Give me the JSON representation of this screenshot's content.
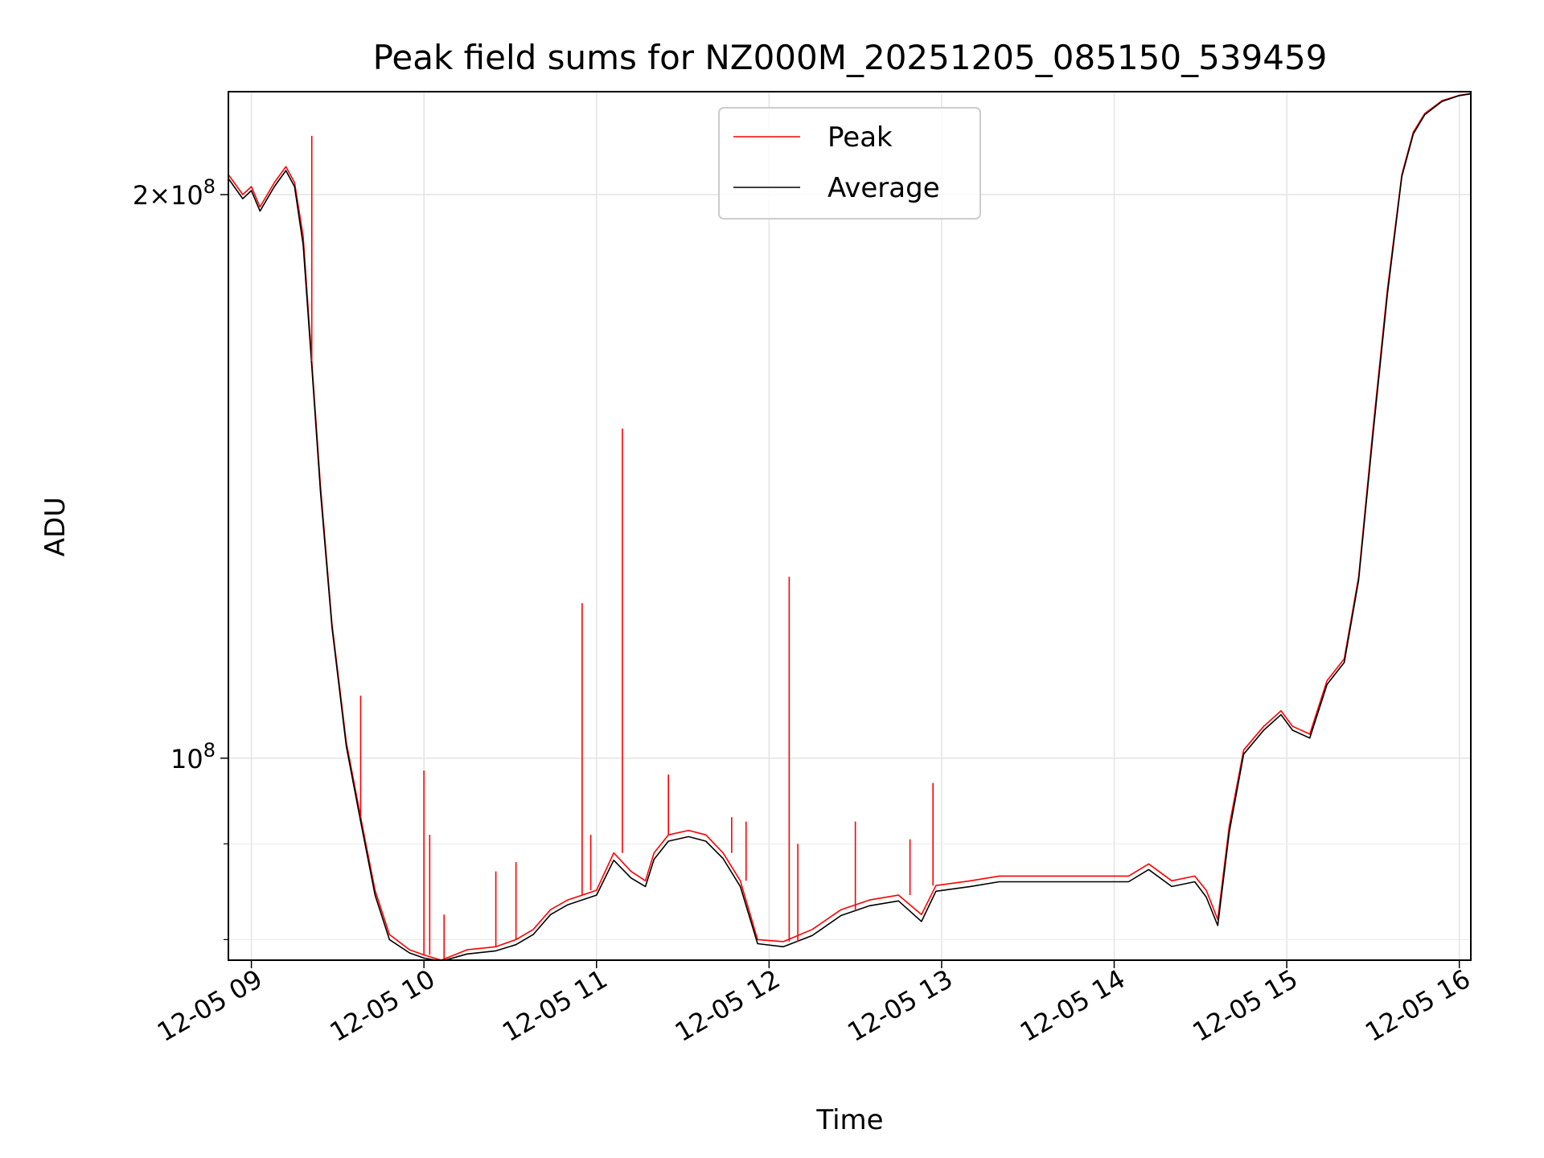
{
  "chart_data": {
    "type": "line",
    "title": "Peak field sums for NZ000M_20251205_085150_539459",
    "xlabel": "Time",
    "ylabel": "ADU",
    "yscale": "log",
    "grid": true,
    "legend_position": "upper center",
    "xlim": [
      "2025-12-05 08:52",
      "2025-12-05 16:04"
    ],
    "ylim": [
      78000000.0,
      227000000.0
    ],
    "x_ticks": [
      "12-05 09",
      "12-05 10",
      "12-05 11",
      "12-05 12",
      "12-05 13",
      "12-05 14",
      "12-05 15",
      "12-05 16"
    ],
    "x_tick_times": [
      "2025-12-05 09:00",
      "2025-12-05 10:00",
      "2025-12-05 11:00",
      "2025-12-05 12:00",
      "2025-12-05 13:00",
      "2025-12-05 14:00",
      "2025-12-05 15:00",
      "2025-12-05 16:00"
    ],
    "y_major_ticks": [
      {
        "value": 100000000.0,
        "label_base": "10",
        "label_exp": "8",
        "label_coef": ""
      },
      {
        "value": 200000000.0,
        "label_base": "10",
        "label_exp": "8",
        "label_coef": "2×"
      }
    ],
    "y_minor_ticks": [
      80000000.0,
      90000000.0
    ],
    "series": [
      {
        "name": "Peak",
        "color": "#ff0000",
        "x": [
          "2025-12-05 08:52",
          "2025-12-05 08:57",
          "2025-12-05 09:00",
          "2025-12-05 09:03",
          "2025-12-05 09:08",
          "2025-12-05 09:12",
          "2025-12-05 09:15",
          "2025-12-05 09:18",
          "2025-12-05 09:21",
          "2025-12-05 09:24",
          "2025-12-05 09:28",
          "2025-12-05 09:33",
          "2025-12-05 09:38",
          "2025-12-05 09:43",
          "2025-12-05 09:48",
          "2025-12-05 09:55",
          "2025-12-05 10:00",
          "2025-12-05 10:06",
          "2025-12-05 10:15",
          "2025-12-05 10:25",
          "2025-12-05 10:32",
          "2025-12-05 10:38",
          "2025-12-05 10:44",
          "2025-12-05 10:50",
          "2025-12-05 10:55",
          "2025-12-05 11:00",
          "2025-12-05 11:06",
          "2025-12-05 11:12",
          "2025-12-05 11:17",
          "2025-12-05 11:20",
          "2025-12-05 11:25",
          "2025-12-05 11:32",
          "2025-12-05 11:38",
          "2025-12-05 11:44",
          "2025-12-05 11:50",
          "2025-12-05 11:56",
          "2025-12-05 12:05",
          "2025-12-05 12:15",
          "2025-12-05 12:25",
          "2025-12-05 12:35",
          "2025-12-05 12:45",
          "2025-12-05 12:53",
          "2025-12-05 12:58",
          "2025-12-05 13:10",
          "2025-12-05 13:20",
          "2025-12-05 13:35",
          "2025-12-05 13:50",
          "2025-12-05 14:05",
          "2025-12-05 14:12",
          "2025-12-05 14:20",
          "2025-12-05 14:28",
          "2025-12-05 14:32",
          "2025-12-05 14:36",
          "2025-12-05 14:40",
          "2025-12-05 14:45",
          "2025-12-05 14:52",
          "2025-12-05 14:58",
          "2025-12-05 15:02",
          "2025-12-05 15:08",
          "2025-12-05 15:14",
          "2025-12-05 15:20",
          "2025-12-05 15:25",
          "2025-12-05 15:30",
          "2025-12-05 15:35",
          "2025-12-05 15:40",
          "2025-12-05 15:44",
          "2025-12-05 15:48",
          "2025-12-05 15:54",
          "2025-12-05 16:00",
          "2025-12-05 16:04"
        ],
        "values": [
          205000000.0,
          200000000.0,
          202000000.0,
          197000000.0,
          203000000.0,
          207000000.0,
          203000000.0,
          190000000.0,
          163000000.0,
          140000000.0,
          118000000.0,
          102000000.0,
          93000000.0,
          85000000.0,
          80500000.0,
          79000000.0,
          78500000.0,
          78000000.0,
          79000000.0,
          79300000.0,
          80000000.0,
          81000000.0,
          83000000.0,
          84000000.0,
          84500000.0,
          85000000.0,
          89000000.0,
          87000000.0,
          86000000.0,
          89000000.0,
          91000000.0,
          91500000.0,
          91000000.0,
          89000000.0,
          86000000.0,
          80000000.0,
          79800000.0,
          81000000.0,
          83000000.0,
          84000000.0,
          84500000.0,
          82500000.0,
          85500000.0,
          86000000.0,
          86500000.0,
          86500000.0,
          86500000.0,
          86500000.0,
          87800000.0,
          86000000.0,
          86500000.0,
          85000000.0,
          82000000.0,
          92000000.0,
          101000000.0,
          104000000.0,
          106000000.0,
          104000000.0,
          103000000.0,
          110000000.0,
          113000000.0,
          125000000.0,
          150000000.0,
          178000000.0,
          205000000.0,
          216000000.0,
          221000000.0,
          224500000.0,
          226000000.0,
          226500000.0
        ]
      },
      {
        "name": "Average",
        "color": "#000000",
        "x": [
          "2025-12-05 08:52",
          "2025-12-05 08:57",
          "2025-12-05 09:00",
          "2025-12-05 09:03",
          "2025-12-05 09:08",
          "2025-12-05 09:12",
          "2025-12-05 09:15",
          "2025-12-05 09:18",
          "2025-12-05 09:21",
          "2025-12-05 09:24",
          "2025-12-05 09:28",
          "2025-12-05 09:33",
          "2025-12-05 09:38",
          "2025-12-05 09:43",
          "2025-12-05 09:48",
          "2025-12-05 09:55",
          "2025-12-05 10:00",
          "2025-12-05 10:06",
          "2025-12-05 10:15",
          "2025-12-05 10:25",
          "2025-12-05 10:32",
          "2025-12-05 10:38",
          "2025-12-05 10:44",
          "2025-12-05 10:50",
          "2025-12-05 10:55",
          "2025-12-05 11:00",
          "2025-12-05 11:06",
          "2025-12-05 11:12",
          "2025-12-05 11:17",
          "2025-12-05 11:20",
          "2025-12-05 11:25",
          "2025-12-05 11:32",
          "2025-12-05 11:38",
          "2025-12-05 11:44",
          "2025-12-05 11:50",
          "2025-12-05 11:56",
          "2025-12-05 12:05",
          "2025-12-05 12:15",
          "2025-12-05 12:25",
          "2025-12-05 12:35",
          "2025-12-05 12:45",
          "2025-12-05 12:53",
          "2025-12-05 12:58",
          "2025-12-05 13:10",
          "2025-12-05 13:20",
          "2025-12-05 13:35",
          "2025-12-05 13:50",
          "2025-12-05 14:05",
          "2025-12-05 14:12",
          "2025-12-05 14:20",
          "2025-12-05 14:28",
          "2025-12-05 14:32",
          "2025-12-05 14:36",
          "2025-12-05 14:40",
          "2025-12-05 14:45",
          "2025-12-05 14:52",
          "2025-12-05 14:58",
          "2025-12-05 15:02",
          "2025-12-05 15:08",
          "2025-12-05 15:14",
          "2025-12-05 15:20",
          "2025-12-05 15:25",
          "2025-12-05 15:30",
          "2025-12-05 15:35",
          "2025-12-05 15:40",
          "2025-12-05 15:44",
          "2025-12-05 15:48",
          "2025-12-05 15:54",
          "2025-12-05 16:00",
          "2025-12-05 16:04"
        ],
        "values": [
          204000000.0,
          199000000.0,
          201000000.0,
          196000000.0,
          202000000.0,
          206000000.0,
          202000000.0,
          188000000.0,
          162000000.0,
          139000000.0,
          117500000.0,
          101500000.0,
          92500000.0,
          84500000.0,
          80000000.0,
          78700000.0,
          78200000.0,
          77900000.0,
          78600000.0,
          78900000.0,
          79500000.0,
          80500000.0,
          82500000.0,
          83500000.0,
          84000000.0,
          84500000.0,
          88200000.0,
          86300000.0,
          85400000.0,
          88300000.0,
          90300000.0,
          90800000.0,
          90300000.0,
          88400000.0,
          85400000.0,
          79600000.0,
          79300000.0,
          80400000.0,
          82400000.0,
          83400000.0,
          83900000.0,
          81800000.0,
          84900000.0,
          85400000.0,
          85900000.0,
          85900000.0,
          85900000.0,
          85900000.0,
          87200000.0,
          85400000.0,
          85900000.0,
          84300000.0,
          81400000.0,
          91300000.0,
          100500000.0,
          103500000.0,
          105500000.0,
          103500000.0,
          102500000.0,
          109500000.0,
          112500000.0,
          124500000.0,
          149000000.0,
          177000000.0,
          204500000.0,
          215500000.0,
          220700000.0,
          224300000.0,
          225900000.0,
          226400000.0
        ]
      }
    ],
    "spikes": [
      {
        "x": "2025-12-05 09:21",
        "value": 215000000.0
      },
      {
        "x": "2025-12-05 09:38",
        "value": 108000000.0
      },
      {
        "x": "2025-12-05 10:00",
        "value": 98500000.0
      },
      {
        "x": "2025-12-05 10:02",
        "value": 91000000.0
      },
      {
        "x": "2025-12-05 10:07",
        "value": 82500000.0
      },
      {
        "x": "2025-12-05 10:25",
        "value": 87000000.0
      },
      {
        "x": "2025-12-05 10:32",
        "value": 88000000.0
      },
      {
        "x": "2025-12-05 10:55",
        "value": 121000000.0
      },
      {
        "x": "2025-12-05 10:58",
        "value": 91000000.0
      },
      {
        "x": "2025-12-05 11:09",
        "value": 150000000.0
      },
      {
        "x": "2025-12-05 11:25",
        "value": 98000000.0
      },
      {
        "x": "2025-12-05 11:47",
        "value": 93000000.0
      },
      {
        "x": "2025-12-05 11:52",
        "value": 92500000.0
      },
      {
        "x": "2025-12-05 12:07",
        "value": 125000000.0
      },
      {
        "x": "2025-12-05 12:10",
        "value": 90000000.0
      },
      {
        "x": "2025-12-05 12:30",
        "value": 92500000.0
      },
      {
        "x": "2025-12-05 12:49",
        "value": 90500000.0
      },
      {
        "x": "2025-12-05 12:57",
        "value": 97000000.0
      }
    ]
  }
}
